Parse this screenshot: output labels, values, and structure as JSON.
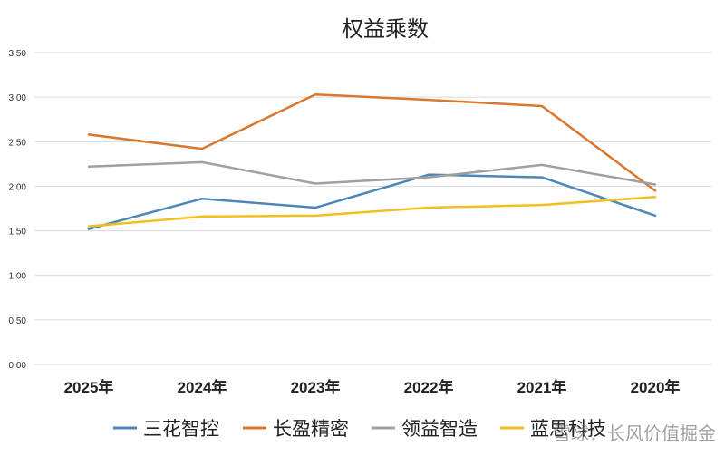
{
  "chart_data": {
    "type": "line",
    "title": "权益乘数",
    "categories": [
      "2025年",
      "2024年",
      "2023年",
      "2022年",
      "2021年",
      "2020年"
    ],
    "ylim": [
      0,
      3.5
    ],
    "yticks": [
      "0.00",
      "0.50",
      "1.00",
      "1.50",
      "2.00",
      "2.50",
      "3.00",
      "3.50"
    ],
    "grid": true,
    "legend_position": "bottom",
    "series": [
      {
        "name": "三花智控",
        "color": "#4e86b8",
        "values": [
          1.52,
          1.86,
          1.76,
          2.13,
          2.1,
          1.67
        ]
      },
      {
        "name": "长盈精密",
        "color": "#d9772e",
        "values": [
          2.58,
          2.42,
          3.03,
          2.97,
          2.9,
          1.95
        ]
      },
      {
        "name": "领益智造",
        "color": "#a0a0a0",
        "values": [
          2.22,
          2.27,
          2.03,
          2.1,
          2.24,
          2.02
        ]
      },
      {
        "name": "蓝思科技",
        "color": "#f2c01c",
        "values": [
          1.55,
          1.66,
          1.67,
          1.76,
          1.79,
          1.88
        ]
      }
    ]
  },
  "watermark": "雪球：长风价值掘金"
}
